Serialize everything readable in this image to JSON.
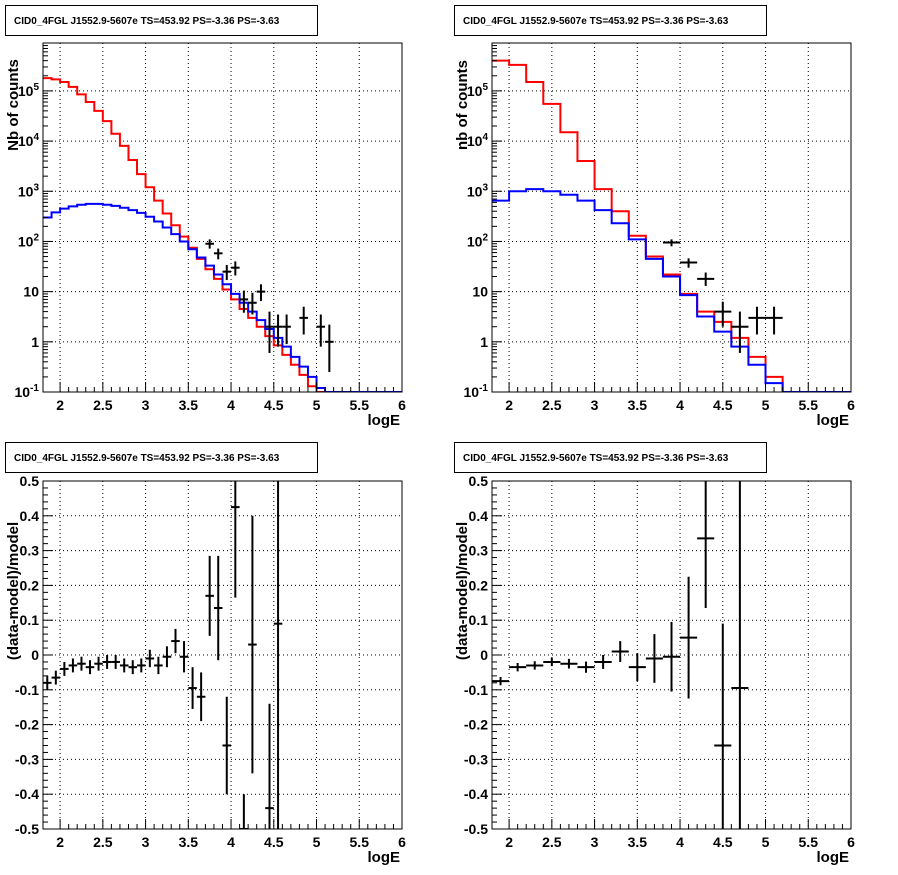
{
  "chart_data": [
    {
      "type": "step-histogram",
      "title": "CID0_4FGL J1552.9-5607e TS=453.92 PS=-3.36 PS=-3.63",
      "xlabel": "logE",
      "ylabel": "Nb of counts",
      "xlim": [
        1.8,
        6
      ],
      "ylim": [
        0.1,
        900000
      ],
      "yscale": "log",
      "grid": true,
      "xticks": [
        "2",
        "2.5",
        "3",
        "3.5",
        "4",
        "4.5",
        "5",
        "5.5",
        "6"
      ],
      "yticks": [
        "10^-1",
        "1",
        "10",
        "10^2",
        "10^3",
        "10^4",
        "10^5"
      ],
      "bin_edges": [
        1.8,
        1.9,
        2.0,
        2.1,
        2.2,
        2.3,
        2.4,
        2.5,
        2.6,
        2.7,
        2.8,
        2.9,
        3.0,
        3.1,
        3.2,
        3.3,
        3.4,
        3.5,
        3.6,
        3.7,
        3.8,
        3.9,
        4.0,
        4.1,
        4.2,
        4.3,
        4.4,
        4.5,
        4.6,
        4.7,
        4.8,
        4.9,
        5.0,
        5.1,
        5.2,
        5.3,
        5.4,
        5.5,
        5.6,
        5.7,
        5.8,
        5.9,
        6.0
      ],
      "series": [
        {
          "color": "#ff0000",
          "values": [
            180000,
            170000,
            150000,
            120000,
            85000,
            60000,
            40000,
            25000,
            14000,
            8000,
            4200,
            2200,
            1200,
            650,
            360,
            210,
            125,
            75,
            45,
            28,
            18,
            11,
            7,
            4.5,
            3,
            2,
            1.3,
            0.85,
            0.55,
            0.35,
            0.22,
            0.13,
            0.1,
            0.1,
            0.1,
            0.1,
            0.1,
            0.1,
            0.1,
            0.1,
            0.1,
            0.1
          ]
        },
        {
          "color": "#0000ff",
          "values": [
            300,
            380,
            450,
            500,
            540,
            560,
            560,
            540,
            510,
            470,
            420,
            370,
            310,
            250,
            190,
            140,
            100,
            70,
            48,
            33,
            22,
            14,
            9,
            6,
            4,
            2.7,
            1.8,
            1.2,
            0.8,
            0.5,
            0.32,
            0.2,
            0.12,
            0.1,
            0.1,
            0.1,
            0.1,
            0.1,
            0.1,
            0.1,
            0.1,
            0.1
          ]
        }
      ],
      "data_points": [
        {
          "x": 3.75,
          "y": 90,
          "ylo": 72,
          "yhi": 110
        },
        {
          "x": 3.85,
          "y": 58,
          "ylo": 44,
          "yhi": 72
        },
        {
          "x": 3.95,
          "y": 25,
          "ylo": 17,
          "yhi": 34
        },
        {
          "x": 4.05,
          "y": 30,
          "ylo": 21,
          "yhi": 40
        },
        {
          "x": 4.15,
          "y": 7,
          "ylo": 3.8,
          "yhi": 10.5
        },
        {
          "x": 4.25,
          "y": 6,
          "ylo": 3.5,
          "yhi": 9.5
        },
        {
          "x": 4.35,
          "y": 10,
          "ylo": 6.5,
          "yhi": 14
        },
        {
          "x": 4.45,
          "y": 2,
          "ylo": 0.6,
          "yhi": 4
        },
        {
          "x": 4.55,
          "y": 2,
          "ylo": 0.8,
          "yhi": 3.5
        },
        {
          "x": 4.65,
          "y": 2,
          "ylo": 0.9,
          "yhi": 3.5
        },
        {
          "x": 4.85,
          "y": 3,
          "ylo": 1.4,
          "yhi": 5
        },
        {
          "x": 5.05,
          "y": 2,
          "ylo": 0.8,
          "yhi": 3.5
        },
        {
          "x": 5.15,
          "y": 1,
          "ylo": 0.25,
          "yhi": 2.2
        }
      ]
    },
    {
      "type": "step-histogram",
      "title": "CID0_4FGL J1552.9-5607e TS=453.92 PS=-3.36 PS=-3.63",
      "xlabel": "logE",
      "ylabel": "nb of counts",
      "xlim": [
        1.8,
        6
      ],
      "ylim": [
        0.1,
        900000
      ],
      "yscale": "log",
      "grid": true,
      "xticks": [
        "2",
        "2.5",
        "3",
        "3.5",
        "4",
        "4.5",
        "5",
        "5.5",
        "6"
      ],
      "yticks": [
        "10^-1",
        "1",
        "10",
        "10^2",
        "10^3",
        "10^4",
        "10^5"
      ],
      "bin_edges": [
        1.8,
        2.0,
        2.2,
        2.4,
        2.6,
        2.8,
        3.0,
        3.2,
        3.4,
        3.6,
        3.8,
        4.0,
        4.2,
        4.4,
        4.6,
        4.8,
        5.0,
        5.2,
        5.4,
        5.6,
        5.8,
        6.0
      ],
      "series": [
        {
          "color": "#ff0000",
          "values": [
            400000,
            330000,
            150000,
            55000,
            15000,
            4000,
            1100,
            400,
            130,
            50,
            22,
            9,
            4,
            2.5,
            1.2,
            0.5,
            0.2,
            0.1,
            0.1,
            0.1,
            0.1
          ]
        },
        {
          "color": "#0000ff",
          "values": [
            650,
            1000,
            1100,
            1000,
            850,
            650,
            420,
            230,
            110,
            45,
            20,
            8.5,
            3.2,
            1.6,
            0.8,
            0.35,
            0.15,
            0.1,
            0.1,
            0.1,
            0.1
          ]
        }
      ],
      "data_points": [
        {
          "x": 3.9,
          "y": 95,
          "ylo": 80,
          "yhi": 110
        },
        {
          "x": 4.1,
          "y": 38,
          "ylo": 30,
          "yhi": 46
        },
        {
          "x": 4.3,
          "y": 18,
          "ylo": 13,
          "yhi": 24
        },
        {
          "x": 4.5,
          "y": 4,
          "ylo": 2,
          "yhi": 6.3
        },
        {
          "x": 4.7,
          "y": 2,
          "ylo": 0.6,
          "yhi": 4
        },
        {
          "x": 4.9,
          "y": 3,
          "ylo": 1.4,
          "yhi": 5
        },
        {
          "x": 5.1,
          "y": 3,
          "ylo": 1.4,
          "yhi": 5
        }
      ]
    },
    {
      "type": "scatter-errorbars",
      "title": "CID0_4FGL J1552.9-5607e TS=453.92 PS=-3.36 PS=-3.63",
      "xlabel": "logE",
      "ylabel": "(data-model)/model",
      "xlim": [
        1.8,
        6
      ],
      "ylim": [
        -0.5,
        0.5
      ],
      "grid": true,
      "xticks": [
        "2",
        "2.5",
        "3",
        "3.5",
        "4",
        "4.5",
        "5",
        "5.5",
        "6"
      ],
      "yticks": [
        "-0.5",
        "-0.4",
        "-0.3",
        "-0.2",
        "-0.1",
        "0",
        "0.1",
        "0.2",
        "0.3",
        "0.4",
        "0.5"
      ],
      "bin_width": 0.1,
      "points": [
        {
          "x": 1.85,
          "y": -0.08,
          "err": 0.02
        },
        {
          "x": 1.95,
          "y": -0.065,
          "err": 0.02
        },
        {
          "x": 2.05,
          "y": -0.04,
          "err": 0.02
        },
        {
          "x": 2.15,
          "y": -0.03,
          "err": 0.02
        },
        {
          "x": 2.25,
          "y": -0.025,
          "err": 0.02
        },
        {
          "x": 2.35,
          "y": -0.035,
          "err": 0.02
        },
        {
          "x": 2.45,
          "y": -0.025,
          "err": 0.02
        },
        {
          "x": 2.55,
          "y": -0.02,
          "err": 0.02
        },
        {
          "x": 2.65,
          "y": -0.02,
          "err": 0.02
        },
        {
          "x": 2.75,
          "y": -0.03,
          "err": 0.02
        },
        {
          "x": 2.85,
          "y": -0.035,
          "err": 0.02
        },
        {
          "x": 2.95,
          "y": -0.03,
          "err": 0.02
        },
        {
          "x": 3.05,
          "y": -0.01,
          "err": 0.025
        },
        {
          "x": 3.15,
          "y": -0.03,
          "err": 0.025
        },
        {
          "x": 3.25,
          "y": -0.005,
          "err": 0.03
        },
        {
          "x": 3.35,
          "y": 0.04,
          "err": 0.035
        },
        {
          "x": 3.45,
          "y": -0.005,
          "err": 0.045
        },
        {
          "x": 3.55,
          "y": -0.095,
          "err": 0.06
        },
        {
          "x": 3.65,
          "y": -0.12,
          "err": 0.07
        },
        {
          "x": 3.75,
          "y": 0.17,
          "err": 0.115
        },
        {
          "x": 3.85,
          "y": 0.135,
          "err": 0.15
        },
        {
          "x": 3.95,
          "y": -0.26,
          "err": 0.14
        },
        {
          "x": 4.05,
          "y": 0.425,
          "err": 0.26
        },
        {
          "x": 4.15,
          "y": -0.5,
          "err": 0.1
        },
        {
          "x": 4.25,
          "y": 0.03,
          "err": 0.37
        },
        {
          "x": 4.45,
          "y": -0.44,
          "err": 0.3
        },
        {
          "x": 4.55,
          "y": 0.09,
          "err": 0.65
        }
      ]
    },
    {
      "type": "scatter-errorbars",
      "title": "CID0_4FGL J1552.9-5607e TS=453.92 PS=-3.36 PS=-3.63",
      "xlabel": "logE",
      "ylabel": "(data-model)/model",
      "xlim": [
        1.8,
        6
      ],
      "ylim": [
        -0.5,
        0.5
      ],
      "grid": true,
      "xticks": [
        "2",
        "2.5",
        "3",
        "3.5",
        "4",
        "4.5",
        "5",
        "5.5",
        "6"
      ],
      "yticks": [
        "-0.5",
        "-0.4",
        "-0.3",
        "-0.2",
        "-0.1",
        "0",
        "0.1",
        "0.2",
        "0.3",
        "0.4",
        "0.5"
      ],
      "bin_width": 0.2,
      "points": [
        {
          "x": 1.9,
          "y": -0.075,
          "err": 0.012
        },
        {
          "x": 2.1,
          "y": -0.035,
          "err": 0.012
        },
        {
          "x": 2.3,
          "y": -0.03,
          "err": 0.012
        },
        {
          "x": 2.5,
          "y": -0.02,
          "err": 0.012
        },
        {
          "x": 2.7,
          "y": -0.025,
          "err": 0.014
        },
        {
          "x": 2.9,
          "y": -0.035,
          "err": 0.016
        },
        {
          "x": 3.1,
          "y": -0.02,
          "err": 0.02
        },
        {
          "x": 3.3,
          "y": 0.01,
          "err": 0.03
        },
        {
          "x": 3.5,
          "y": -0.035,
          "err": 0.04
        },
        {
          "x": 3.7,
          "y": -0.01,
          "err": 0.07
        },
        {
          "x": 3.9,
          "y": -0.005,
          "err": 0.1
        },
        {
          "x": 4.1,
          "y": 0.05,
          "err": 0.175
        },
        {
          "x": 4.3,
          "y": 0.335,
          "err": 0.2
        },
        {
          "x": 4.5,
          "y": -0.26,
          "err": 0.35
        },
        {
          "x": 4.7,
          "y": -0.095,
          "err": 0.6
        }
      ]
    }
  ]
}
